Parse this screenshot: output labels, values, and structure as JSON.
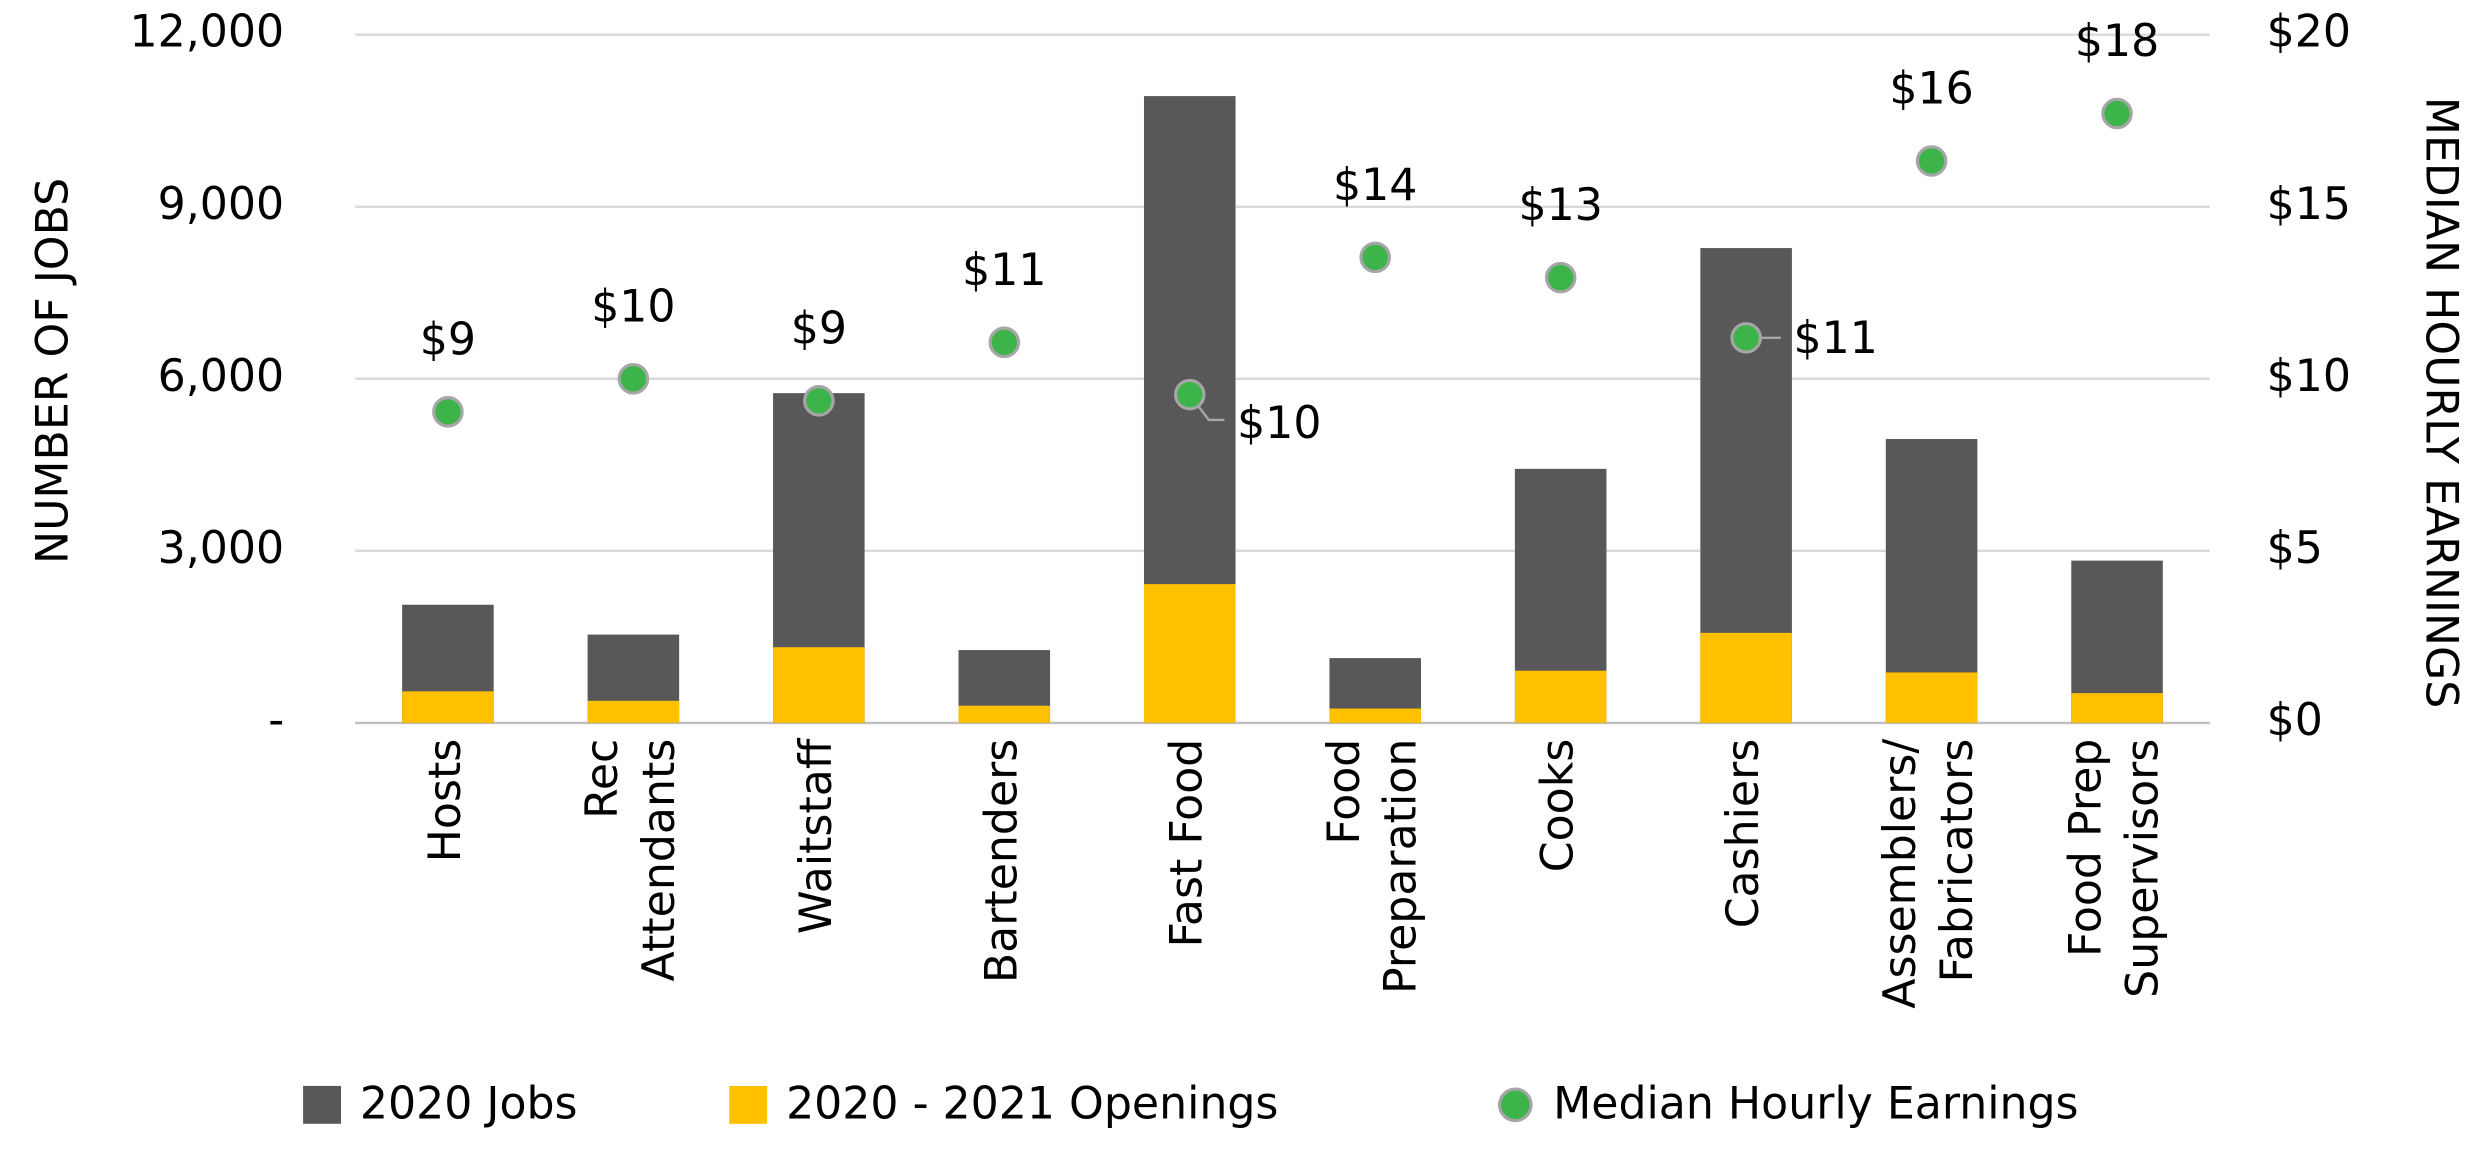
{
  "chart_data": {
    "type": "bar-dot",
    "categories": [
      "Hosts",
      "Rec\nAttendants",
      "Waitstaff",
      "Bartenders",
      "Fast Food",
      "Food\nPreparation",
      "Cooks",
      "Cashiers",
      "Assemblers/\nFabricators",
      "Food Prep\nSupervisors"
    ],
    "series": [
      {
        "name": "2020 Jobs",
        "color": "#58585a",
        "values": [
          2060,
          1540,
          5750,
          1270,
          10930,
          1130,
          4430,
          8280,
          4950,
          2830
        ]
      },
      {
        "name": "2020 - 2021 Openings",
        "color": "#ffc000",
        "values": [
          550,
          385,
          1320,
          300,
          2420,
          250,
          910,
          1570,
          880,
          520
        ]
      },
      {
        "name": "Median Hourly Earnings",
        "color": "#3cb44a",
        "axis": "y2",
        "values": [
          9.04,
          10.0,
          9.36,
          11.06,
          9.54,
          13.53,
          12.94,
          11.19,
          16.33,
          17.71
        ],
        "value_labels": [
          "$9",
          "$10",
          "$9",
          "$11",
          "$10",
          "$14",
          "$13",
          "$11",
          "$16",
          "$18"
        ]
      }
    ],
    "y_label": "NUMBER OF JOBS",
    "y2_label": "MEDIAN HOURLY EARNINGS",
    "ylim": [
      0,
      12000
    ],
    "yticks": [
      {
        "value": 0,
        "label": "-"
      },
      {
        "value": 3000,
        "label": "3,000"
      },
      {
        "value": 6000,
        "label": "6,000"
      },
      {
        "value": 9000,
        "label": "9,000"
      },
      {
        "value": 12000,
        "label": "12,000"
      }
    ],
    "y2lim": [
      0,
      20
    ],
    "y2ticks": [
      {
        "value": 0,
        "label": "$0"
      },
      {
        "value": 5,
        "label": "$5"
      },
      {
        "value": 10,
        "label": "$10"
      },
      {
        "value": 15,
        "label": "$15"
      },
      {
        "value": 20,
        "label": "$20"
      }
    ],
    "grid": true,
    "legend": "bottom"
  }
}
